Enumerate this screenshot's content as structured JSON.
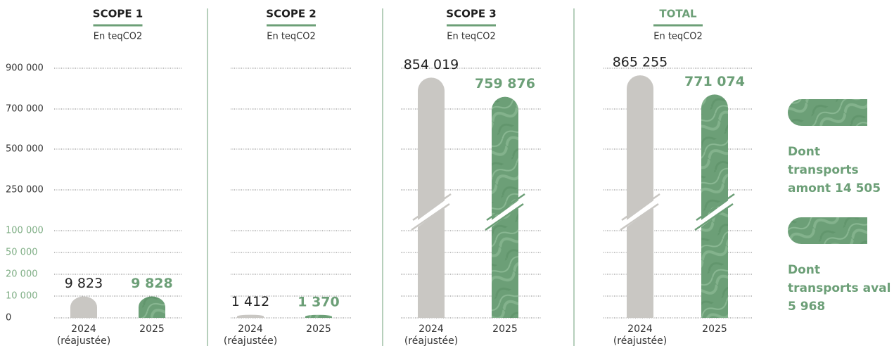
{
  "chart_data": [
    {
      "type": "bar",
      "title": "SCOPE 1",
      "subtitle": "En teqCO2",
      "categories": [
        "2024 (réajustée)",
        "2025"
      ],
      "values": [
        9823,
        9828
      ],
      "value_labels": [
        "9 823",
        "9 828"
      ],
      "colors": [
        "#c9c7c3",
        "#6c9f77"
      ],
      "title_color": "#1f1f1f",
      "ylim": [
        0,
        900000
      ],
      "yticks": [
        0,
        {
          "value": 10000,
          "label": "10 000"
        },
        {
          "value": 20000,
          "label": "20 000"
        },
        {
          "value": 50000,
          "label": "50 000"
        },
        {
          "value": 100000,
          "label": "100 000"
        },
        {
          "value": 250000,
          "label": "250 000"
        },
        {
          "value": 500000,
          "label": "500 000"
        },
        {
          "value": 700000,
          "label": "700 000"
        },
        {
          "value": 900000,
          "label": "900 000"
        }
      ],
      "ytick_colors": [
        "#333333",
        "#7fae85",
        "#7fae85",
        "#7fae85",
        "#7fae85",
        "#333333",
        "#333333",
        "#333333",
        "#333333"
      ],
      "grid": true,
      "axis_break": false
    },
    {
      "type": "bar",
      "title": "SCOPE 2",
      "subtitle": "En teqCO2",
      "categories": [
        "2024 (réajustée)",
        "2025"
      ],
      "values": [
        1412,
        1370
      ],
      "value_labels": [
        "1 412",
        "1 370"
      ],
      "colors": [
        "#c9c7c3",
        "#6c9f77"
      ],
      "title_color": "#1f1f1f",
      "grid": true,
      "axis_break": false
    },
    {
      "type": "bar",
      "title": "SCOPE 3",
      "subtitle": "En teqCO2",
      "categories": [
        "2024 (réajustée)",
        "2025"
      ],
      "values": [
        854019,
        759876
      ],
      "value_labels": [
        "854 019",
        "759 876"
      ],
      "colors": [
        "#c9c7c3",
        "#6c9f77"
      ],
      "title_color": "#1f1f1f",
      "grid": true,
      "axis_break": true
    },
    {
      "type": "bar",
      "title": "TOTAL",
      "subtitle": "En teqCO2",
      "categories": [
        "2024 (réajustée)",
        "2025"
      ],
      "values": [
        865255,
        771074
      ],
      "value_labels": [
        "865 255",
        "771 074"
      ],
      "colors": [
        "#c9c7c3",
        "#6c9f77"
      ],
      "title_color": "#6c9f77",
      "grid": true,
      "axis_break": true
    }
  ],
  "legend": [
    {
      "label": "Dont transports amont 14 505"
    },
    {
      "label": "Dont transports aval 5 968"
    }
  ]
}
